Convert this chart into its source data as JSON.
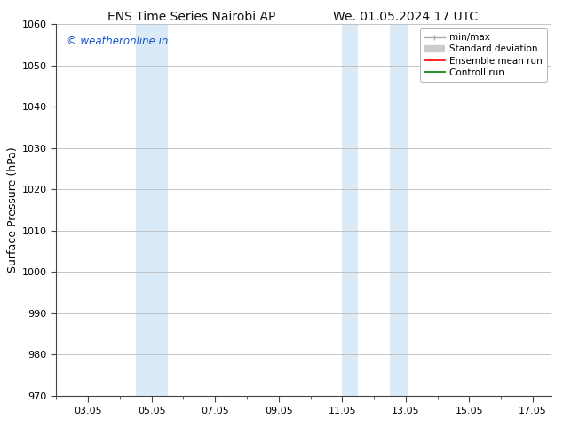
{
  "title_left": "ENS Time Series Nairobi AP",
  "title_right": "We. 01.05.2024 17 UTC",
  "ylabel": "Surface Pressure (hPa)",
  "ylim": [
    970,
    1060
  ],
  "yticks": [
    970,
    980,
    990,
    1000,
    1010,
    1020,
    1030,
    1040,
    1050,
    1060
  ],
  "xlim": [
    2.0,
    17.6
  ],
  "xtick_labels": [
    "03.05",
    "05.05",
    "07.05",
    "09.05",
    "11.05",
    "13.05",
    "15.05",
    "17.05"
  ],
  "xtick_positions": [
    3,
    5,
    7,
    9,
    11,
    13,
    15,
    17
  ],
  "shaded_bands": [
    {
      "xmin": 4.5,
      "xmax": 5.5
    },
    {
      "xmin": 11.0,
      "xmax": 11.5
    },
    {
      "xmin": 12.5,
      "xmax": 13.1
    }
  ],
  "band_color": "#daeaf7",
  "watermark_text": "© weatheronline.in",
  "watermark_color": "#1155cc",
  "bg_color": "#ffffff",
  "spine_color": "#444444",
  "tick_color": "#444444",
  "grid_color": "#bbbbbb",
  "title_fontsize": 10,
  "tick_fontsize": 8,
  "label_fontsize": 9,
  "watermark_fontsize": 8.5
}
